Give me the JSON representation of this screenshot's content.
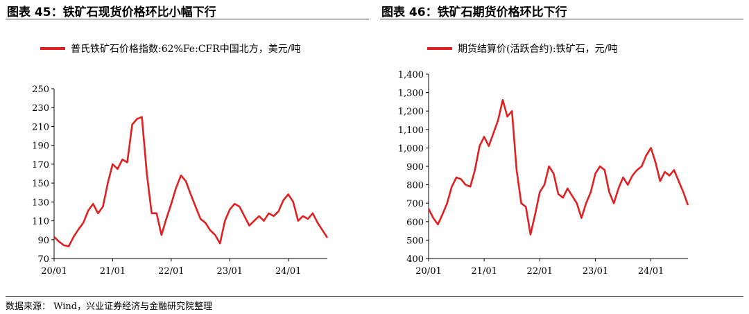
{
  "footer": {
    "source": "数据来源： Wind，兴业证券经济与金融研究院整理"
  },
  "chart_data": [
    {
      "type": "line",
      "title": "图表 45：铁矿石现货价格环比小幅下行",
      "legend_position": "top",
      "grid": false,
      "x_ticks": [
        "20/01",
        "21/01",
        "22/01",
        "23/01",
        "24/01"
      ],
      "y_ticks": [
        "70",
        "90",
        "110",
        "130",
        "150",
        "170",
        "190",
        "210",
        "230",
        "250"
      ],
      "ylim": [
        70,
        250
      ],
      "xlim": [
        "2020-01",
        "2024-09"
      ],
      "series": [
        {
          "name": "普氏铁矿石价格指数:62%Fe:CFR中国北方，美元/吨",
          "color": "#e02020",
          "x": [
            "2020-01",
            "2020-02",
            "2020-03",
            "2020-04",
            "2020-05",
            "2020-06",
            "2020-07",
            "2020-08",
            "2020-09",
            "2020-10",
            "2020-11",
            "2020-12",
            "2021-01",
            "2021-02",
            "2021-03",
            "2021-04",
            "2021-05",
            "2021-06",
            "2021-07",
            "2021-08",
            "2021-09",
            "2021-10",
            "2021-11",
            "2021-12",
            "2022-01",
            "2022-02",
            "2022-03",
            "2022-04",
            "2022-05",
            "2022-06",
            "2022-07",
            "2022-08",
            "2022-09",
            "2022-10",
            "2022-11",
            "2022-12",
            "2023-01",
            "2023-02",
            "2023-03",
            "2023-04",
            "2023-05",
            "2023-06",
            "2023-07",
            "2023-08",
            "2023-09",
            "2023-10",
            "2023-11",
            "2023-12",
            "2024-01",
            "2024-02",
            "2024-03",
            "2024-04",
            "2024-05",
            "2024-06",
            "2024-07",
            "2024-08",
            "2024-09"
          ],
          "values": [
            93,
            88,
            84,
            83,
            93,
            101,
            108,
            121,
            128,
            118,
            125,
            150,
            170,
            165,
            175,
            172,
            212,
            218,
            220,
            160,
            118,
            118,
            95,
            112,
            128,
            145,
            158,
            152,
            138,
            125,
            112,
            108,
            100,
            95,
            86,
            110,
            122,
            128,
            125,
            115,
            105,
            110,
            115,
            110,
            118,
            115,
            120,
            132,
            138,
            130,
            110,
            115,
            112,
            118,
            108,
            100,
            92
          ]
        }
      ]
    },
    {
      "type": "line",
      "title": "图表 46：铁矿石期货价格环比下行",
      "legend_position": "top",
      "grid": false,
      "x_ticks": [
        "20/01",
        "21/01",
        "22/01",
        "23/01",
        "24/01"
      ],
      "y_ticks": [
        "400",
        "500",
        "600",
        "700",
        "800",
        "900",
        "1,000",
        "1,100",
        "1,200",
        "1,300",
        "1,400"
      ],
      "ylim": [
        400,
        1400
      ],
      "xlim": [
        "2020-01",
        "2024-09"
      ],
      "series": [
        {
          "name": "期货结算价(活跃合约):铁矿石，元/吨",
          "color": "#e02020",
          "x": [
            "2020-01",
            "2020-02",
            "2020-03",
            "2020-04",
            "2020-05",
            "2020-06",
            "2020-07",
            "2020-08",
            "2020-09",
            "2020-10",
            "2020-11",
            "2020-12",
            "2021-01",
            "2021-02",
            "2021-03",
            "2021-04",
            "2021-05",
            "2021-06",
            "2021-07",
            "2021-08",
            "2021-09",
            "2021-10",
            "2021-11",
            "2021-12",
            "2022-01",
            "2022-02",
            "2022-03",
            "2022-04",
            "2022-05",
            "2022-06",
            "2022-07",
            "2022-08",
            "2022-09",
            "2022-10",
            "2022-11",
            "2022-12",
            "2023-01",
            "2023-02",
            "2023-03",
            "2023-04",
            "2023-05",
            "2023-06",
            "2023-07",
            "2023-08",
            "2023-09",
            "2023-10",
            "2023-11",
            "2023-12",
            "2024-01",
            "2024-02",
            "2024-03",
            "2024-04",
            "2024-05",
            "2024-06",
            "2024-07",
            "2024-08",
            "2024-09"
          ],
          "values": [
            670,
            620,
            585,
            640,
            700,
            790,
            840,
            830,
            800,
            790,
            880,
            1010,
            1060,
            1010,
            1080,
            1150,
            1260,
            1170,
            1200,
            880,
            700,
            680,
            530,
            640,
            760,
            800,
            900,
            860,
            750,
            730,
            780,
            740,
            700,
            620,
            700,
            760,
            860,
            900,
            880,
            760,
            700,
            780,
            840,
            800,
            850,
            880,
            900,
            960,
            1000,
            920,
            820,
            870,
            850,
            880,
            820,
            760,
            690
          ]
        }
      ]
    }
  ]
}
